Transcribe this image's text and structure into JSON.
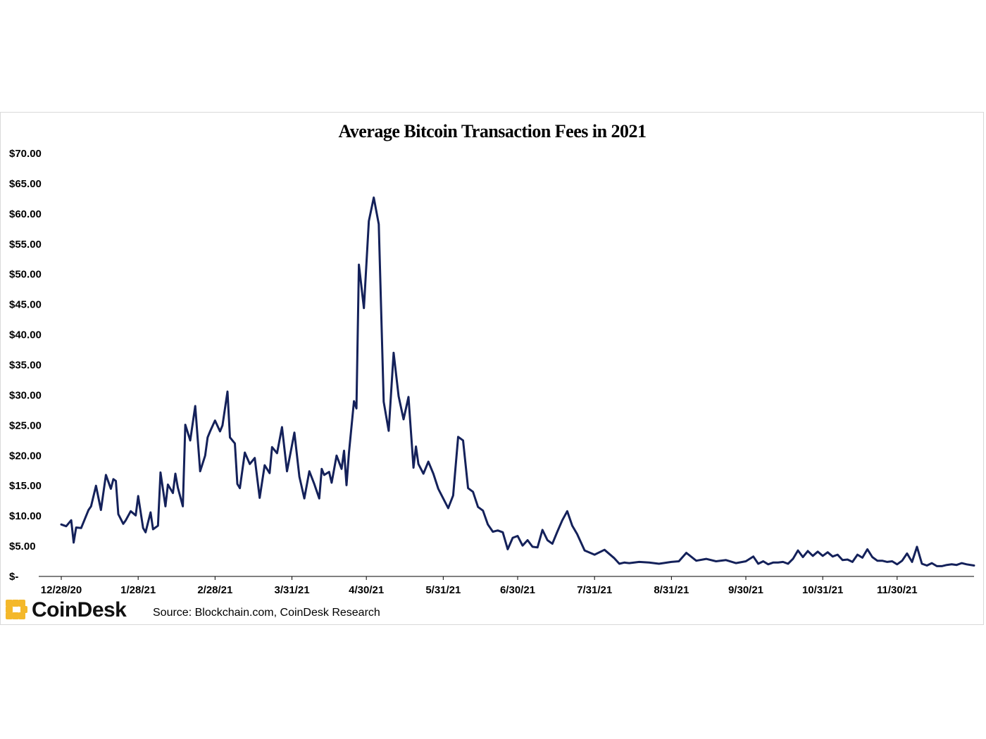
{
  "colors": {
    "line": "#14215a",
    "axis": "#000000",
    "brand": "#f4b82a"
  },
  "brand": {
    "name": "CoinDesk",
    "icon": "coindesk-logo-icon"
  },
  "source": "Source: Blockchain.com, CoinDesk Research",
  "chart_data": {
    "type": "line",
    "title": "Average Bitcoin Transaction Fees in 2021",
    "xlabel": "",
    "ylabel": "",
    "ylim": [
      0,
      70
    ],
    "xlim": [
      "2020-12-28",
      "2021-12-31"
    ],
    "y_ticks": [
      0,
      5,
      10,
      15,
      20,
      25,
      30,
      35,
      40,
      45,
      50,
      55,
      60,
      65,
      70
    ],
    "y_tick_labels": [
      "$-",
      "$5.00",
      "$10.00",
      "$15.00",
      "$20.00",
      "$25.00",
      "$30.00",
      "$35.00",
      "$40.00",
      "$45.00",
      "$50.00",
      "$55.00",
      "$60.00",
      "$65.00",
      "$70.00"
    ],
    "x_ticks": [
      "2020-12-28",
      "2021-01-28",
      "2021-02-28",
      "2021-03-31",
      "2021-04-30",
      "2021-05-31",
      "2021-06-30",
      "2021-07-31",
      "2021-08-31",
      "2021-09-30",
      "2021-10-31",
      "2021-11-30"
    ],
    "x_tick_labels": [
      "12/28/20",
      "1/28/21",
      "2/28/21",
      "3/31/21",
      "4/30/21",
      "5/31/21",
      "6/30/21",
      "7/31/21",
      "8/31/21",
      "9/30/21",
      "10/31/21",
      "11/30/21"
    ],
    "grid": false,
    "series": [
      {
        "name": "",
        "x": [
          "2020-12-28",
          "2020-12-30",
          "2021-01-01",
          "2021-01-02",
          "2021-01-03",
          "2021-01-05",
          "2021-01-08",
          "2021-01-09",
          "2021-01-11",
          "2021-01-13",
          "2021-01-15",
          "2021-01-17",
          "2021-01-18",
          "2021-01-19",
          "2021-01-20",
          "2021-01-22",
          "2021-01-23",
          "2021-01-25",
          "2021-01-27",
          "2021-01-28",
          "2021-01-30",
          "2021-01-31",
          "2021-02-02",
          "2021-02-03",
          "2021-02-05",
          "2021-02-06",
          "2021-02-08",
          "2021-02-09",
          "2021-02-11",
          "2021-02-12",
          "2021-02-13",
          "2021-02-15",
          "2021-02-16",
          "2021-02-18",
          "2021-02-20",
          "2021-02-22",
          "2021-02-24",
          "2021-02-25",
          "2021-02-26",
          "2021-02-28",
          "2021-03-02",
          "2021-03-03",
          "2021-03-05",
          "2021-03-06",
          "2021-03-08",
          "2021-03-09",
          "2021-03-10",
          "2021-03-12",
          "2021-03-14",
          "2021-03-16",
          "2021-03-18",
          "2021-03-20",
          "2021-03-22",
          "2021-03-23",
          "2021-03-25",
          "2021-03-27",
          "2021-03-29",
          "2021-04-01",
          "2021-04-03",
          "2021-04-05",
          "2021-04-07",
          "2021-04-09",
          "2021-04-11",
          "2021-04-12",
          "2021-04-13",
          "2021-04-15",
          "2021-04-16",
          "2021-04-18",
          "2021-04-20",
          "2021-04-21",
          "2021-04-22",
          "2021-04-23",
          "2021-04-25",
          "2021-04-26",
          "2021-04-27",
          "2021-04-29",
          "2021-05-01",
          "2021-05-03",
          "2021-05-05",
          "2021-05-07",
          "2021-05-09",
          "2021-05-11",
          "2021-05-13",
          "2021-05-15",
          "2021-05-17",
          "2021-05-19",
          "2021-05-20",
          "2021-05-21",
          "2021-05-23",
          "2021-05-25",
          "2021-05-27",
          "2021-05-29",
          "2021-05-31",
          "2021-06-02",
          "2021-06-04",
          "2021-06-06",
          "2021-06-08",
          "2021-06-10",
          "2021-06-12",
          "2021-06-14",
          "2021-06-16",
          "2021-06-18",
          "2021-06-20",
          "2021-06-22",
          "2021-06-24",
          "2021-06-26",
          "2021-06-28",
          "2021-06-30",
          "2021-07-02",
          "2021-07-04",
          "2021-07-06",
          "2021-07-08",
          "2021-07-10",
          "2021-07-12",
          "2021-07-14",
          "2021-07-16",
          "2021-07-18",
          "2021-07-20",
          "2021-07-22",
          "2021-07-24",
          "2021-07-27",
          "2021-07-31",
          "2021-08-04",
          "2021-08-08",
          "2021-08-10",
          "2021-08-12",
          "2021-08-14",
          "2021-08-18",
          "2021-08-22",
          "2021-08-26",
          "2021-08-31",
          "2021-09-03",
          "2021-09-06",
          "2021-09-10",
          "2021-09-14",
          "2021-09-18",
          "2021-09-22",
          "2021-09-26",
          "2021-09-30",
          "2021-10-03",
          "2021-10-05",
          "2021-10-07",
          "2021-10-09",
          "2021-10-11",
          "2021-10-13",
          "2021-10-15",
          "2021-10-17",
          "2021-10-19",
          "2021-10-21",
          "2021-10-23",
          "2021-10-25",
          "2021-10-27",
          "2021-10-29",
          "2021-10-31",
          "2021-11-02",
          "2021-11-04",
          "2021-11-06",
          "2021-11-08",
          "2021-11-10",
          "2021-11-12",
          "2021-11-14",
          "2021-11-16",
          "2021-11-18",
          "2021-11-20",
          "2021-11-22",
          "2021-11-24",
          "2021-11-26",
          "2021-11-28",
          "2021-11-30",
          "2021-12-02",
          "2021-12-04",
          "2021-12-06",
          "2021-12-08",
          "2021-12-10",
          "2021-12-12",
          "2021-12-14",
          "2021-12-16",
          "2021-12-18",
          "2021-12-20",
          "2021-12-22",
          "2021-12-24",
          "2021-12-26",
          "2021-12-28",
          "2021-12-31"
        ],
        "values": [
          8.6,
          8.3,
          9.3,
          5.6,
          8.1,
          8.0,
          11.0,
          11.6,
          15.0,
          11.0,
          16.8,
          14.5,
          16.1,
          15.8,
          10.3,
          8.7,
          9.3,
          10.8,
          10.1,
          13.3,
          8.0,
          7.3,
          10.6,
          7.8,
          8.4,
          17.2,
          11.6,
          15.2,
          13.8,
          17.0,
          14.7,
          11.6,
          25.1,
          22.5,
          28.2,
          17.4,
          20.0,
          23.0,
          24.0,
          25.8,
          24.0,
          25.0,
          30.6,
          23.0,
          22.0,
          15.3,
          14.6,
          20.5,
          18.6,
          19.6,
          13.0,
          18.4,
          17.1,
          21.4,
          20.4,
          24.7,
          17.4,
          23.8,
          16.5,
          12.9,
          17.4,
          15.3,
          12.9,
          17.8,
          16.8,
          17.3,
          15.5,
          20.0,
          17.8,
          20.8,
          15.1,
          20.5,
          29.0,
          27.8,
          51.6,
          44.4,
          58.8,
          62.7,
          58.3,
          28.9,
          24.1,
          37.0,
          29.8,
          26.0,
          29.7,
          18.0,
          21.5,
          18.6,
          17.0,
          19.0,
          17.0,
          14.5,
          12.9,
          11.3,
          13.4,
          23.1,
          22.5,
          14.6,
          14.0,
          11.5,
          10.9,
          8.6,
          7.4,
          7.6,
          7.3,
          4.5,
          6.4,
          6.7,
          5.1,
          6.0,
          4.9,
          4.8,
          7.7,
          6.0,
          5.4,
          7.4,
          9.3,
          10.8,
          8.4,
          7.0,
          4.3,
          3.6,
          4.4,
          3.0,
          2.1,
          2.3,
          2.2,
          2.4,
          2.3,
          2.1,
          2.4,
          2.5,
          3.9,
          2.6,
          2.9,
          2.5,
          2.7,
          2.2,
          2.5,
          3.3,
          2.1,
          2.5,
          2.0,
          2.3,
          2.3,
          2.4,
          2.1,
          2.9,
          4.3,
          3.2,
          4.2,
          3.4,
          4.1,
          3.4,
          4.0,
          3.3,
          3.6,
          2.7,
          2.8,
          2.4,
          3.6,
          3.1,
          4.5,
          3.2,
          2.6,
          2.6,
          2.4,
          2.5,
          2.0,
          2.6,
          3.8,
          2.4,
          4.9,
          2.1,
          1.8,
          2.2,
          1.7,
          1.7,
          1.9,
          2.0,
          1.9,
          2.2,
          2.0,
          1.8
        ]
      }
    ]
  }
}
